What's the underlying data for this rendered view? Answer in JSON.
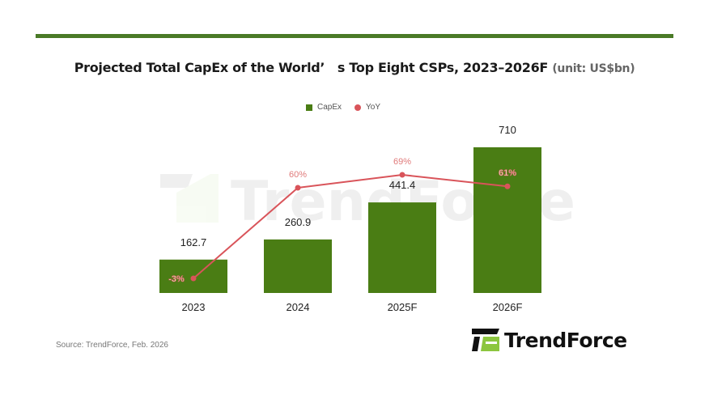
{
  "header": {
    "title": "Projected Total CapEx of the World’　s Top Eight CSPs, 2023–2026F",
    "unit": "(unit: US$bn)"
  },
  "legend": {
    "capex": "CapEx",
    "yoy": "YoY"
  },
  "colors": {
    "bar": "#4a7d14",
    "line": "#d9545a",
    "rule": "#4a7a27",
    "logo_green": "#8cc63f"
  },
  "chart_data": {
    "type": "bar",
    "title": "Projected Total CapEx of the World’s Top Eight CSPs, 2023–2026F",
    "unit": "US$bn",
    "categories": [
      "2023",
      "2024",
      "2025F",
      "2026F"
    ],
    "series": [
      {
        "name": "CapEx",
        "type": "bar",
        "values": [
          162.7,
          260.9,
          441.4,
          710
        ],
        "labels": [
          "162.7",
          "260.9",
          "441.4",
          "710"
        ]
      },
      {
        "name": "YoY",
        "type": "line",
        "values": [
          -3,
          60,
          69,
          61
        ],
        "labels": [
          "-3%",
          "60%",
          "69%",
          "61%"
        ]
      }
    ],
    "legend": "top-center",
    "grid": false
  },
  "footer": {
    "source": "Source: TrendForce, Feb. 2026"
  },
  "logo": {
    "text": "TrendForce",
    "watermark": "TrendForce"
  }
}
